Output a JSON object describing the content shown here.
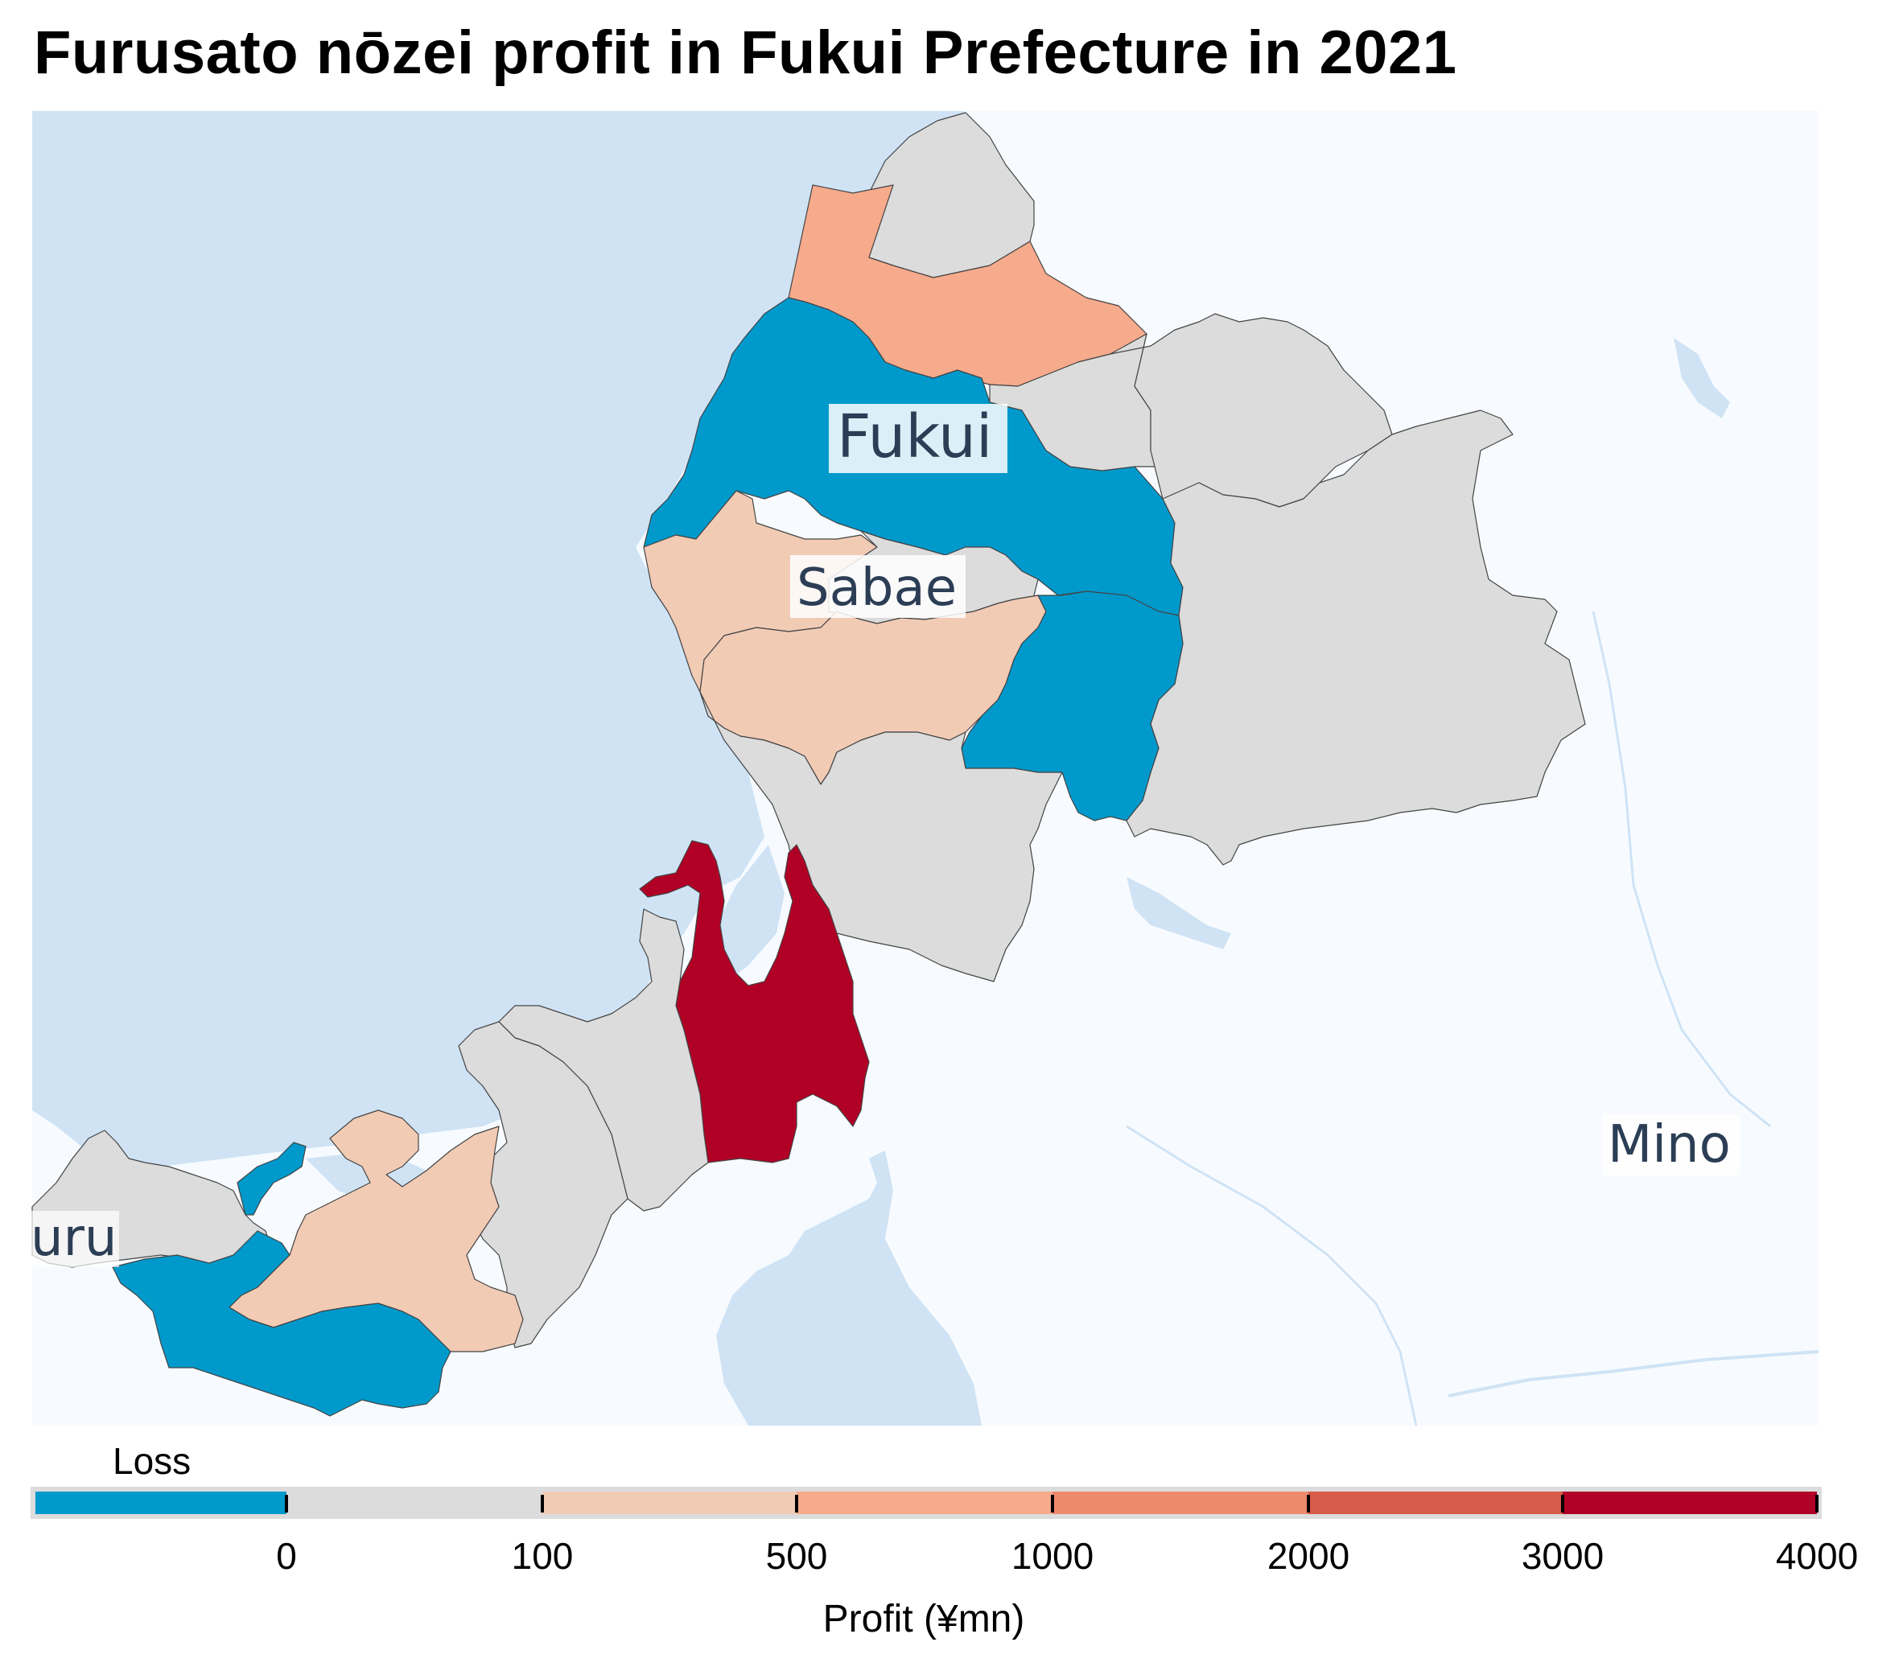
{
  "title": "Furusato nōzei profit in Fukui Prefecture in 2021",
  "colors": {
    "sea": "#cfe3f5",
    "land_background": "#f7fbff",
    "loss": "#0099cc",
    "bin_0_100": "#dcdcdc",
    "bin_100_500": "#f2cbb5",
    "bin_500_1000": "#f6ab8c",
    "bin_1000_2000": "#ed8a6c",
    "bin_2000_3000": "#d85a48",
    "bin_3000_4000": "#b10025"
  },
  "places": {
    "fukui": "Fukui",
    "sabae": "Sabae",
    "mino": "Mino",
    "turu": "uru"
  },
  "legend": {
    "loss_label": "Loss",
    "axis_label": "Profit (¥mn)",
    "ticks": [
      "0",
      "100",
      "500",
      "1000",
      "2000",
      "3000",
      "4000"
    ]
  },
  "chart_data": {
    "type": "choropleth",
    "title": "Furusato nōzei profit in Fukui Prefecture in 2021",
    "colorbar_label": "Profit (¥mn)",
    "bins": [
      {
        "label": "Loss",
        "range": [
          null,
          0
        ],
        "color": "#0099cc"
      },
      {
        "range": [
          0,
          100
        ],
        "color": "#dcdcdc"
      },
      {
        "range": [
          100,
          500
        ],
        "color": "#f2cbb5"
      },
      {
        "range": [
          500,
          1000
        ],
        "color": "#f6ab8c"
      },
      {
        "range": [
          1000,
          2000
        ],
        "color": "#ed8a6c"
      },
      {
        "range": [
          2000,
          3000
        ],
        "color": "#d85a48"
      },
      {
        "range": [
          3000,
          4000
        ],
        "color": "#b10025"
      }
    ],
    "labeled_places": [
      "Fukui",
      "Sabae",
      "Mino",
      "uru"
    ]
  }
}
